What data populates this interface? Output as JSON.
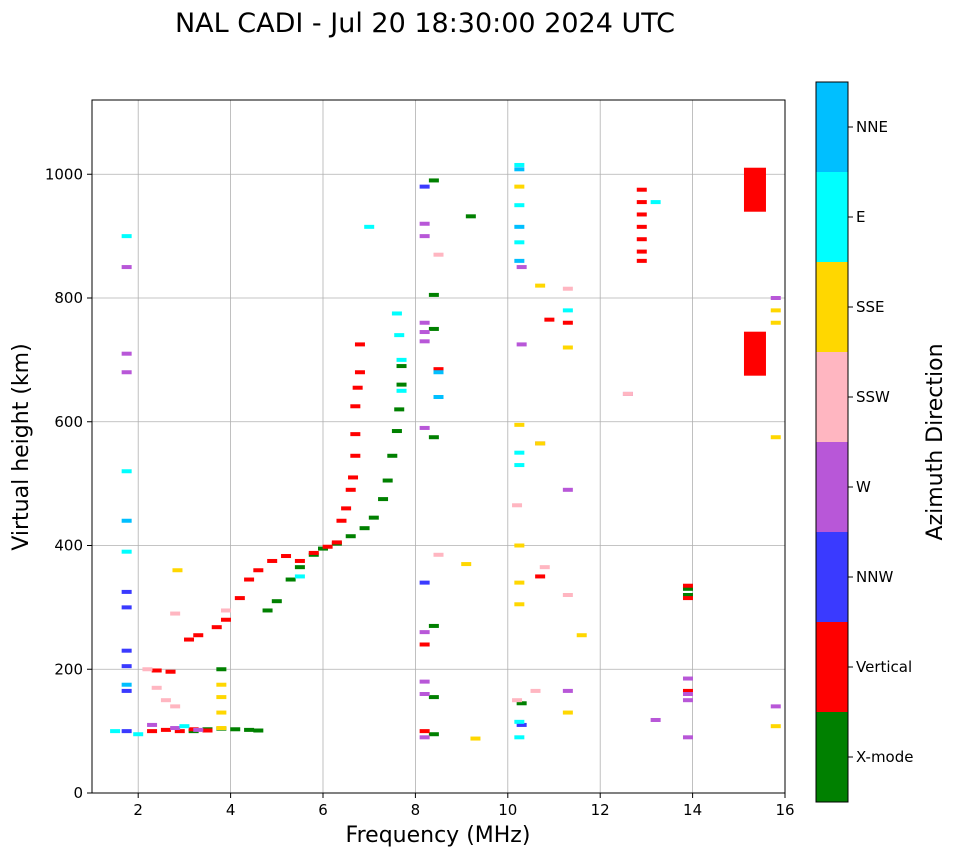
{
  "chart_data": {
    "type": "scatter",
    "title": "NAL CADI - Jul 20 18:30:00 2024 UTC",
    "xlabel": "Frequency (MHz)",
    "ylabel": "Virtual height (km)",
    "xlim": [
      1,
      16
    ],
    "ylim": [
      0,
      1120
    ],
    "xticks": [
      2,
      4,
      6,
      8,
      10,
      12,
      14,
      16
    ],
    "yticks": [
      0,
      200,
      400,
      600,
      800,
      1000
    ],
    "grid": true,
    "colorbar": {
      "label": "Azimuth Direction",
      "categories": [
        {
          "name": "X-mode",
          "color": "#008000"
        },
        {
          "name": "Vertical",
          "color": "#ff0000"
        },
        {
          "name": "NNW",
          "color": "#3a3aff"
        },
        {
          "name": "W",
          "color": "#b857d8"
        },
        {
          "name": "SSW",
          "color": "#ffb6c1"
        },
        {
          "name": "SSE",
          "color": "#ffd700"
        },
        {
          "name": "E",
          "color": "#00ffff"
        },
        {
          "name": "NNE",
          "color": "#00bfff"
        }
      ]
    },
    "series": [
      {
        "name": "X-mode",
        "points": [
          [
            3.2,
            100
          ],
          [
            3.5,
            103
          ],
          [
            3.8,
            104
          ],
          [
            4.1,
            103
          ],
          [
            4.4,
            102
          ],
          [
            4.6,
            101
          ],
          [
            3.8,
            200
          ],
          [
            4.8,
            295
          ],
          [
            5.0,
            310
          ],
          [
            5.3,
            345
          ],
          [
            5.5,
            365
          ],
          [
            5.8,
            385
          ],
          [
            6.0,
            395
          ],
          [
            6.3,
            403
          ],
          [
            6.6,
            415
          ],
          [
            6.9,
            428
          ],
          [
            7.1,
            445
          ],
          [
            7.3,
            475
          ],
          [
            7.4,
            505
          ],
          [
            7.5,
            545
          ],
          [
            7.6,
            585
          ],
          [
            7.65,
            620
          ],
          [
            7.7,
            660
          ],
          [
            7.7,
            690
          ],
          [
            8.4,
            990
          ],
          [
            8.4,
            805
          ],
          [
            8.4,
            750
          ],
          [
            8.4,
            575
          ],
          [
            8.4,
            270
          ],
          [
            8.4,
            155
          ],
          [
            8.4,
            95
          ],
          [
            9.2,
            932
          ],
          [
            10.3,
            145
          ],
          [
            13.9,
            330
          ],
          [
            13.9,
            320
          ]
        ]
      },
      {
        "name": "Vertical",
        "points": [
          [
            2.3,
            100
          ],
          [
            2.6,
            102
          ],
          [
            2.9,
            100
          ],
          [
            3.2,
            103
          ],
          [
            3.5,
            101
          ],
          [
            2.4,
            198
          ],
          [
            2.7,
            196
          ],
          [
            3.1,
            248
          ],
          [
            3.3,
            255
          ],
          [
            3.7,
            268
          ],
          [
            3.9,
            280
          ],
          [
            4.2,
            315
          ],
          [
            4.4,
            345
          ],
          [
            4.6,
            360
          ],
          [
            4.9,
            375
          ],
          [
            5.2,
            383
          ],
          [
            5.5,
            375
          ],
          [
            5.8,
            388
          ],
          [
            6.1,
            398
          ],
          [
            6.3,
            405
          ],
          [
            6.4,
            440
          ],
          [
            6.5,
            460
          ],
          [
            6.6,
            490
          ],
          [
            6.65,
            510
          ],
          [
            6.7,
            545
          ],
          [
            6.7,
            580
          ],
          [
            6.7,
            625
          ],
          [
            6.75,
            655
          ],
          [
            6.8,
            680
          ],
          [
            6.8,
            725
          ],
          [
            8.2,
            240
          ],
          [
            8.2,
            100
          ],
          [
            8.5,
            685
          ],
          [
            10.7,
            350
          ],
          [
            11.3,
            760
          ],
          [
            10.9,
            765
          ],
          [
            12.9,
            975
          ],
          [
            12.9,
            955
          ],
          [
            12.9,
            935
          ],
          [
            12.9,
            915
          ],
          [
            12.9,
            895
          ],
          [
            12.9,
            875
          ],
          [
            12.9,
            860
          ],
          [
            13.9,
            335
          ],
          [
            13.9,
            315
          ],
          [
            13.9,
            165
          ],
          [
            15.35,
            975
          ],
          [
            15.35,
            710
          ]
        ]
      },
      {
        "name": "NNW",
        "points": [
          [
            1.75,
            325
          ],
          [
            1.75,
            300
          ],
          [
            1.75,
            230
          ],
          [
            1.75,
            205
          ],
          [
            1.75,
            165
          ],
          [
            1.75,
            100
          ],
          [
            8.2,
            980
          ],
          [
            8.2,
            340
          ],
          [
            10.3,
            110
          ]
        ]
      },
      {
        "name": "W",
        "points": [
          [
            1.75,
            850
          ],
          [
            1.75,
            710
          ],
          [
            1.75,
            680
          ],
          [
            2.3,
            110
          ],
          [
            2.8,
            105
          ],
          [
            3.3,
            102
          ],
          [
            8.2,
            920
          ],
          [
            8.2,
            900
          ],
          [
            8.2,
            760
          ],
          [
            8.2,
            745
          ],
          [
            8.2,
            730
          ],
          [
            8.2,
            590
          ],
          [
            8.2,
            260
          ],
          [
            8.2,
            180
          ],
          [
            8.2,
            160
          ],
          [
            8.2,
            90
          ],
          [
            10.3,
            850
          ],
          [
            10.3,
            725
          ],
          [
            10.7,
            565
          ],
          [
            11.3,
            490
          ],
          [
            11.3,
            165
          ],
          [
            12.6,
            645
          ],
          [
            13.2,
            118
          ],
          [
            13.9,
            185
          ],
          [
            13.9,
            160
          ],
          [
            13.9,
            150
          ],
          [
            13.9,
            90
          ],
          [
            15.8,
            800
          ],
          [
            15.8,
            140
          ]
        ]
      },
      {
        "name": "SSW",
        "points": [
          [
            2.2,
            200
          ],
          [
            2.4,
            170
          ],
          [
            2.6,
            150
          ],
          [
            2.8,
            140
          ],
          [
            2.8,
            290
          ],
          [
            3.9,
            295
          ],
          [
            8.5,
            385
          ],
          [
            8.5,
            870
          ],
          [
            10.2,
            465
          ],
          [
            10.2,
            150
          ],
          [
            10.6,
            165
          ],
          [
            10.8,
            365
          ],
          [
            11.3,
            815
          ],
          [
            11.3,
            320
          ],
          [
            12.6,
            645
          ]
        ]
      },
      {
        "name": "SSE",
        "points": [
          [
            2.85,
            360
          ],
          [
            3.8,
            175
          ],
          [
            3.8,
            155
          ],
          [
            3.8,
            130
          ],
          [
            3.8,
            105
          ],
          [
            9.1,
            370
          ],
          [
            9.3,
            88
          ],
          [
            10.25,
            980
          ],
          [
            10.25,
            595
          ],
          [
            10.25,
            400
          ],
          [
            10.25,
            340
          ],
          [
            10.25,
            305
          ],
          [
            10.7,
            820
          ],
          [
            10.7,
            565
          ],
          [
            11.3,
            720
          ],
          [
            11.3,
            130
          ],
          [
            11.6,
            255
          ],
          [
            15.8,
            780
          ],
          [
            15.8,
            760
          ],
          [
            15.8,
            575
          ],
          [
            15.8,
            108
          ]
        ]
      },
      {
        "name": "E",
        "points": [
          [
            1.75,
            900
          ],
          [
            1.75,
            520
          ],
          [
            1.75,
            390
          ],
          [
            1.5,
            100
          ],
          [
            2.0,
            95
          ],
          [
            3.0,
            108
          ],
          [
            5.5,
            350
          ],
          [
            7.0,
            915
          ],
          [
            7.6,
            775
          ],
          [
            7.65,
            740
          ],
          [
            7.7,
            700
          ],
          [
            7.7,
            650
          ],
          [
            10.25,
            1015
          ],
          [
            10.25,
            950
          ],
          [
            10.25,
            890
          ],
          [
            10.25,
            550
          ],
          [
            10.25,
            530
          ],
          [
            10.25,
            115
          ],
          [
            10.25,
            90
          ],
          [
            11.3,
            780
          ],
          [
            13.2,
            955
          ]
        ]
      },
      {
        "name": "NNE",
        "points": [
          [
            1.75,
            440
          ],
          [
            1.75,
            175
          ],
          [
            8.5,
            680
          ],
          [
            8.5,
            640
          ],
          [
            10.25,
            1008
          ],
          [
            10.25,
            915
          ],
          [
            10.25,
            860
          ]
        ]
      }
    ]
  }
}
